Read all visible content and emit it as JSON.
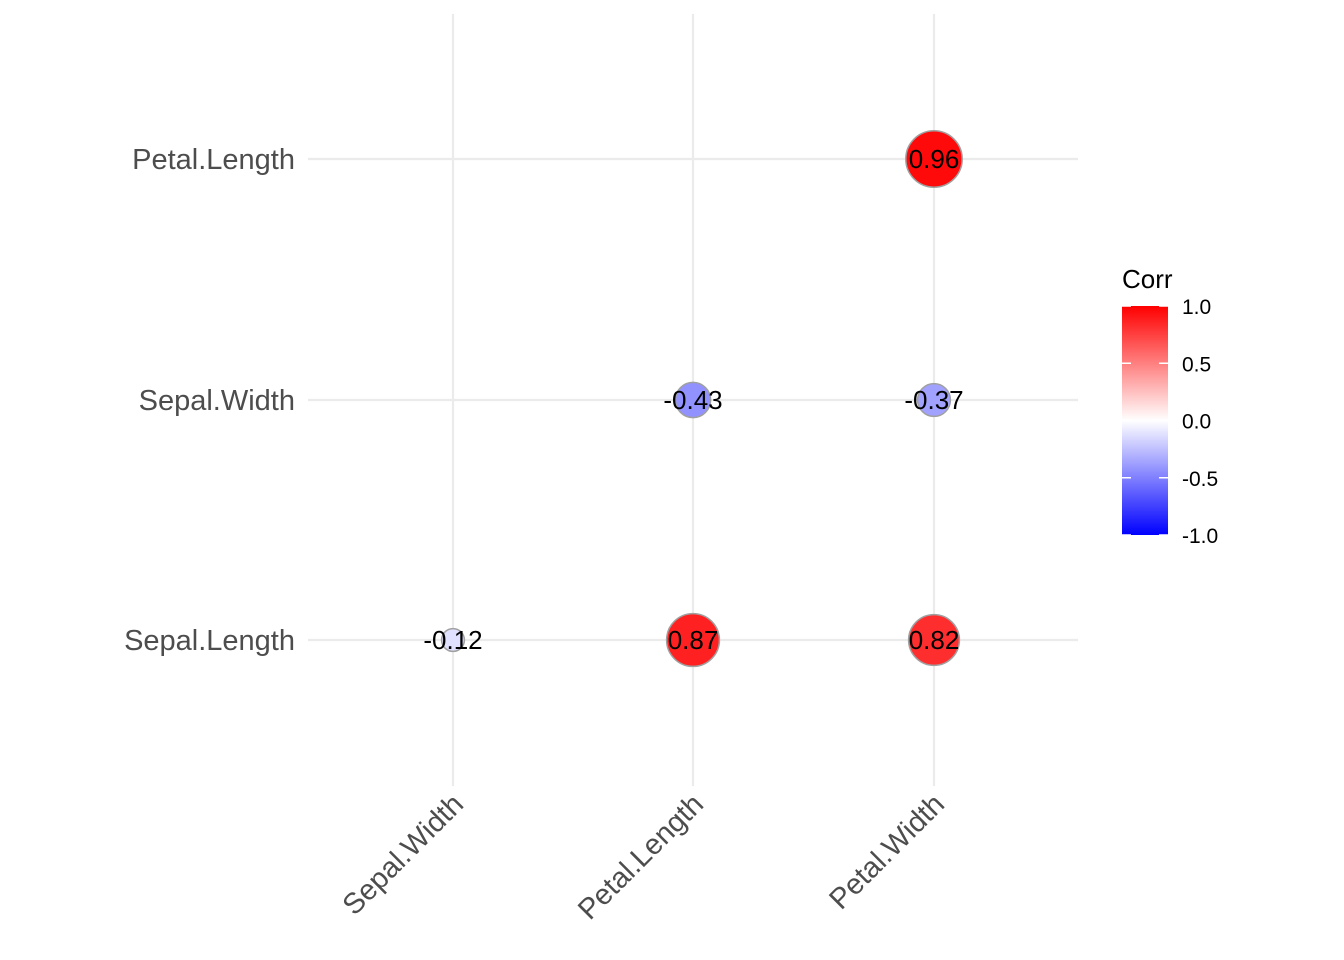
{
  "chart_data": {
    "type": "scatter",
    "subtype": "correlation-circle-matrix",
    "x_categories": [
      "Sepal.Width",
      "Petal.Length",
      "Petal.Width"
    ],
    "y_categories": [
      "Sepal.Length",
      "Sepal.Width",
      "Petal.Length"
    ],
    "cells": [
      {
        "x": "Sepal.Width",
        "y": "Sepal.Length",
        "value": -0.12,
        "label": "-0.12"
      },
      {
        "x": "Petal.Length",
        "y": "Sepal.Length",
        "value": 0.87,
        "label": "0.87"
      },
      {
        "x": "Petal.Width",
        "y": "Sepal.Length",
        "value": 0.82,
        "label": "0.82"
      },
      {
        "x": "Petal.Length",
        "y": "Sepal.Width",
        "value": -0.43,
        "label": "-0.43"
      },
      {
        "x": "Petal.Width",
        "y": "Sepal.Width",
        "value": -0.37,
        "label": "-0.37"
      },
      {
        "x": "Petal.Width",
        "y": "Petal.Length",
        "value": 0.96,
        "label": "0.96"
      }
    ],
    "legend": {
      "title": "Corr",
      "ticks": [
        "1.0",
        "0.5",
        "0.0",
        "-0.5",
        "-1.0"
      ],
      "tick_values": [
        1.0,
        0.5,
        0.0,
        -0.5,
        -1.0
      ],
      "range": [
        -1,
        1
      ],
      "colors": {
        "low": "#0000FF",
        "mid": "#FFFFFF",
        "high": "#FF0000"
      },
      "placement": "right"
    },
    "grid": true,
    "xlabel": "",
    "ylabel": "",
    "title": ""
  }
}
